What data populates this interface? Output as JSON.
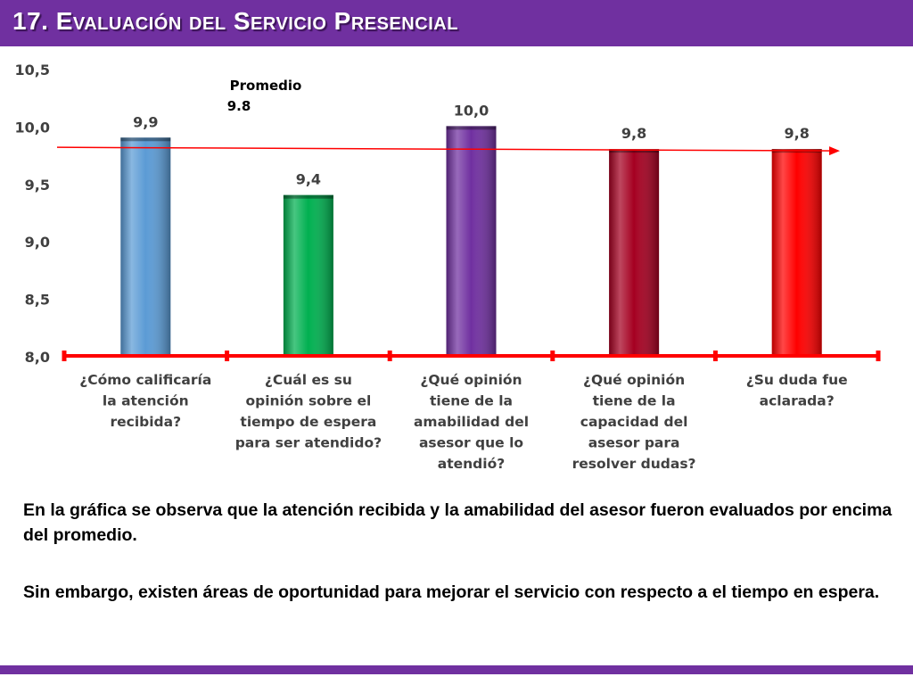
{
  "header": {
    "title": "17. Evaluación del Servicio Presencial"
  },
  "chart_data": {
    "type": "bar",
    "categories": [
      [
        "¿Cómo calificaría",
        "la atención",
        "recibida?"
      ],
      [
        "¿Cuál es su",
        "opinión sobre el",
        "tiempo de espera",
        "para ser atendido?"
      ],
      [
        "¿Qué opinión",
        "tiene de la",
        "amabilidad del",
        "asesor que lo",
        "atendió?"
      ],
      [
        "¿Qué opinión",
        "tiene de la",
        "capacidad del",
        "asesor para",
        "resolver dudas?"
      ],
      [
        "¿Su duda fue",
        "aclarada?"
      ]
    ],
    "values": [
      9.9,
      9.4,
      10.0,
      9.8,
      9.8
    ],
    "value_labels": [
      "9,9",
      "9,4",
      "10,0",
      "9,8",
      "9,8"
    ],
    "bar_colors": [
      "#5b9bd5",
      "#00b050",
      "#7030a0",
      "#a50021",
      "#ff0000"
    ],
    "ylim": [
      8.0,
      10.5
    ],
    "yticks": [
      "8,0",
      "8,5",
      "9,0",
      "9,5",
      "10,0",
      "10,5"
    ],
    "average": {
      "value": 9.8,
      "label_line1": "Promedio",
      "label_line2": "9.8",
      "color": "#ff0000"
    },
    "axis_color": "#ff0000",
    "grid": false,
    "xlabel": "",
    "ylabel": ""
  },
  "text": {
    "paragraph1": "En la gráfica se observa que la atención recibida y la amabilidad del asesor fueron evaluados por encima del promedio.",
    "paragraph2": "Sin embargo, existen áreas de oportunidad para mejorar el servicio con respecto a el tiempo en espera."
  },
  "colors": {
    "accent": "#7030a0"
  }
}
